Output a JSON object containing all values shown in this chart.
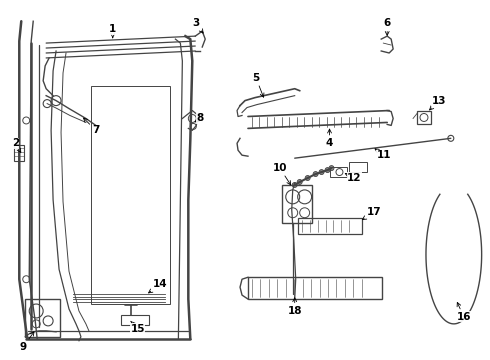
{
  "bg_color": "#ffffff",
  "line_color": "#444444",
  "label_color": "#000000",
  "label_fontsize": 7.5,
  "figsize": [
    4.9,
    3.6
  ],
  "dpi": 100
}
